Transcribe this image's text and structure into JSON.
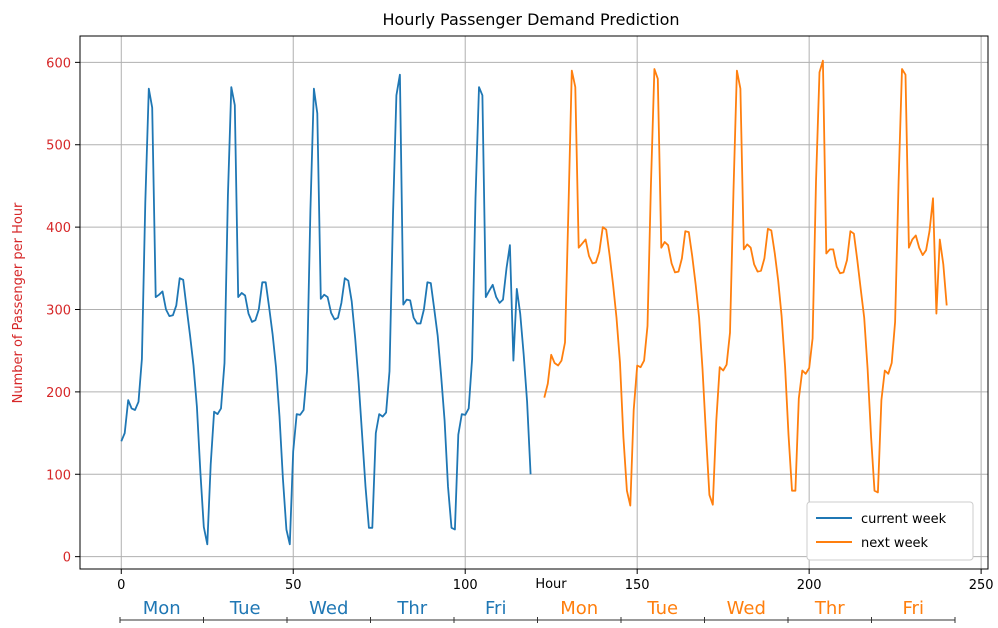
{
  "chart_data": {
    "type": "line",
    "title": "Hourly Passenger Demand Prediction",
    "xlabel": "Hour",
    "ylabel": "Number of Passenger per Hour",
    "xlim": [
      -12,
      252
    ],
    "ylim": [
      -15,
      632
    ],
    "x_ticks": [
      0,
      50,
      100,
      150,
      200,
      250
    ],
    "y_ticks": [
      0,
      100,
      200,
      300,
      400,
      500,
      600
    ],
    "grid": true,
    "legend_position": "lower-right",
    "ylabel_color": "#d62728",
    "ytick_color": "#d62728",
    "series": [
      {
        "name": "current week",
        "color": "#1f77b4",
        "x_start": 0,
        "values": [
          140,
          150,
          190,
          180,
          178,
          188,
          240,
          430,
          568,
          545,
          315,
          318,
          322,
          300,
          292,
          293,
          305,
          338,
          336,
          302,
          268,
          232,
          182,
          102,
          36,
          15,
          112,
          176,
          173,
          180,
          235,
          438,
          570,
          548,
          315,
          320,
          317,
          295,
          285,
          287,
          300,
          333,
          333,
          302,
          270,
          230,
          170,
          95,
          33,
          15,
          128,
          173,
          172,
          178,
          225,
          420,
          568,
          538,
          313,
          318,
          315,
          296,
          288,
          290,
          308,
          338,
          335,
          310,
          265,
          212,
          150,
          85,
          35,
          35,
          150,
          173,
          170,
          175,
          225,
          415,
          560,
          585,
          306,
          312,
          311,
          290,
          283,
          283,
          300,
          333,
          332,
          300,
          268,
          220,
          165,
          85,
          35,
          33,
          148,
          173,
          172,
          180,
          240,
          435,
          570,
          560,
          315,
          323,
          330,
          315,
          308,
          312,
          350,
          378,
          238,
          325,
          295,
          245,
          188,
          100
        ]
      },
      {
        "name": "next week",
        "color": "#ff7f0e",
        "x_start": 123,
        "values": [
          193,
          210,
          245,
          235,
          232,
          238,
          260,
          420,
          590,
          570,
          375,
          380,
          385,
          365,
          356,
          357,
          370,
          400,
          397,
          365,
          330,
          290,
          235,
          145,
          80,
          62,
          178,
          232,
          230,
          238,
          280,
          450,
          592,
          580,
          375,
          382,
          378,
          356,
          345,
          346,
          362,
          395,
          394,
          365,
          330,
          290,
          228,
          148,
          75,
          63,
          165,
          230,
          226,
          233,
          272,
          445,
          590,
          568,
          373,
          379,
          375,
          355,
          346,
          347,
          362,
          398,
          396,
          368,
          335,
          292,
          230,
          148,
          80,
          80,
          192,
          226,
          222,
          229,
          265,
          455,
          588,
          602,
          368,
          373,
          373,
          352,
          344,
          345,
          360,
          395,
          392,
          360,
          325,
          290,
          228,
          145,
          80,
          78,
          190,
          226,
          222,
          235,
          285,
          455,
          592,
          585,
          375,
          385,
          390,
          375,
          366,
          372,
          395,
          435,
          295,
          385,
          355,
          305
        ]
      }
    ],
    "day_labels": [
      {
        "label": "Mon",
        "week": "current"
      },
      {
        "label": "Tue",
        "week": "current"
      },
      {
        "label": "Wed",
        "week": "current"
      },
      {
        "label": "Thr",
        "week": "current"
      },
      {
        "label": "Fri",
        "week": "current"
      },
      {
        "label": "Mon",
        "week": "next"
      },
      {
        "label": "Tue",
        "week": "next"
      },
      {
        "label": "Wed",
        "week": "next"
      },
      {
        "label": "Thr",
        "week": "next"
      },
      {
        "label": "Fri",
        "week": "next"
      }
    ]
  }
}
